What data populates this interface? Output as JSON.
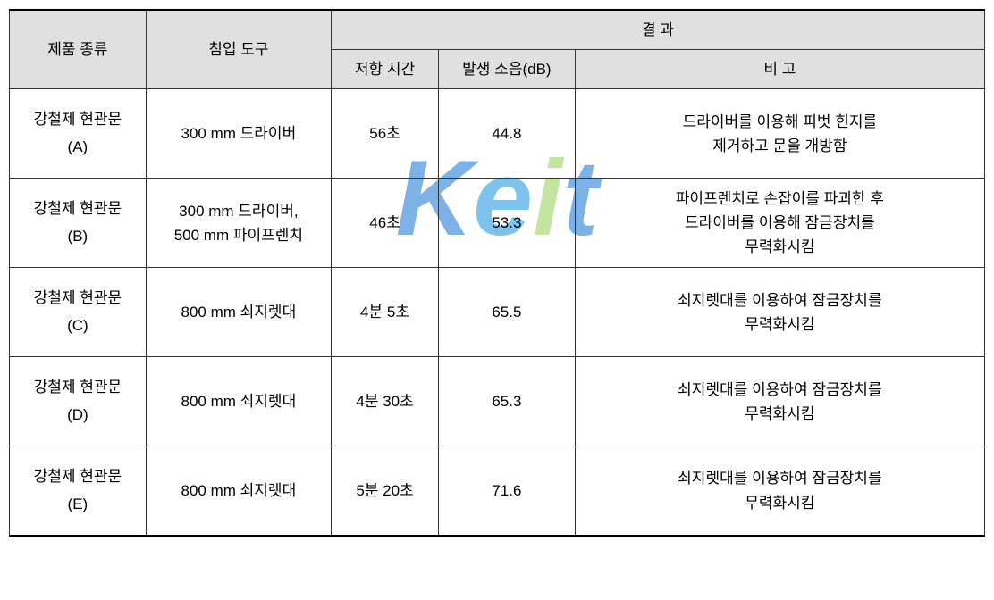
{
  "table": {
    "headers": {
      "product_type": "제품 종류",
      "tool": "침입 도구",
      "result": "결   과",
      "resist_time": "저항 시간",
      "noise": "발생 소음(dB)",
      "note": "비   고"
    },
    "rows": [
      {
        "product_line1": "강철제 현관문",
        "product_line2": "(A)",
        "tool": "300 mm 드라이버",
        "time": "56초",
        "noise": "44.8",
        "note_line1": "드라이버를 이용해 피벗 힌지를",
        "note_line2": "제거하고 문을 개방함"
      },
      {
        "product_line1": "강철제 현관문",
        "product_line2": "(B)",
        "tool_line1": "300 mm 드라이버,",
        "tool_line2": "500 mm 파이프렌치",
        "time": "46초",
        "noise": "53.3",
        "note_line1": "파이프렌치로 손잡이를 파괴한 후",
        "note_line2": "드라이버를 이용해 잠금장치를",
        "note_line3": "무력화시킴"
      },
      {
        "product_line1": "강철제 현관문",
        "product_line2": "(C)",
        "tool": "800 mm 쇠지렛대",
        "time": "4분 5초",
        "noise": "65.5",
        "note_line1": "쇠지렛대를 이용하여 잠금장치를",
        "note_line2": "무력화시킴"
      },
      {
        "product_line1": "강철제 현관문",
        "product_line2": "(D)",
        "tool": "800 mm 쇠지렛대",
        "time": "4분 30초",
        "noise": "65.3",
        "note_line1": "쇠지렛대를 이용하여 잠금장치를",
        "note_line2": "무력화시킴"
      },
      {
        "product_line1": "강철제 현관문",
        "product_line2": "(E)",
        "tool": "800 mm 쇠지렛대",
        "time": "5분 20초",
        "noise": "71.6",
        "note_line1": "쇠지렛대를 이용하여 잠금장치를",
        "note_line2": "무력화시킴"
      }
    ]
  },
  "watermark": {
    "text": "Keit"
  },
  "colors": {
    "header_bg": "#e0e0e0",
    "border": "#333333",
    "text": "#000000",
    "watermark_k": "#0066cc",
    "watermark_e": "#0088dd",
    "watermark_i": "#88cc44",
    "watermark_t": "#0066cc"
  }
}
